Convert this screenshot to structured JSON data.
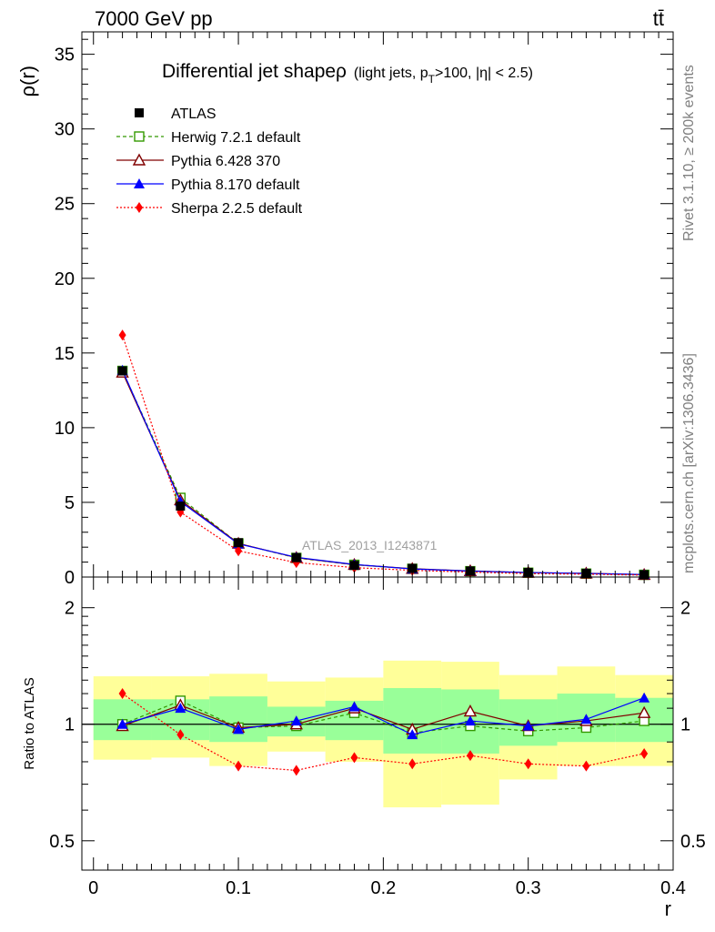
{
  "header": {
    "left_label": "7000 GeV pp",
    "right_label": "tt̄"
  },
  "side_labels": {
    "rivet": "Rivet 3.1.10, ≥ 200k events",
    "mcplots": "mcplots.cern.ch [arXiv:1306.3436]"
  },
  "watermark": "ATLAS_2013_I1243871",
  "chart_data": [
    {
      "type": "line",
      "panel": "main",
      "title": "Differential jet shapeρ",
      "title_cut_parts": [
        "(light jets, p",
        "T",
        ">100, |η| < 2.5)"
      ],
      "ylabel": "ρ(r)",
      "ylim": [
        0,
        36.5
      ],
      "xlim": [
        -0.008,
        0.4
      ],
      "yticks": [
        0,
        5,
        10,
        15,
        20,
        25,
        30,
        35
      ],
      "x": [
        0.02,
        0.06,
        0.1,
        0.14,
        0.18,
        0.22,
        0.26,
        0.3,
        0.34,
        0.38
      ],
      "series": [
        {
          "name": "ATLAS",
          "color": "#000000",
          "marker": "filled-square",
          "line": "none",
          "values": [
            13.8,
            4.75,
            2.3,
            1.3,
            0.78,
            0.58,
            0.4,
            0.3,
            0.24,
            0.15
          ]
        },
        {
          "name": "Herwig 7.2.1 default",
          "color": "#339900",
          "marker": "open-square",
          "line": "dashed",
          "values": [
            13.8,
            5.3,
            2.25,
            1.28,
            0.82,
            0.55,
            0.39,
            0.29,
            0.23,
            0.15
          ]
        },
        {
          "name": "Pythia 6.428 370",
          "color": "#800000",
          "marker": "open-triangle",
          "line": "solid",
          "values": [
            13.7,
            5.15,
            2.25,
            1.3,
            0.83,
            0.56,
            0.41,
            0.3,
            0.25,
            0.16
          ]
        },
        {
          "name": "Pythia 8.170 default",
          "color": "#0000ff",
          "marker": "filled-triangle",
          "line": "solid",
          "values": [
            13.85,
            5.05,
            2.22,
            1.32,
            0.84,
            0.54,
            0.4,
            0.3,
            0.24,
            0.17
          ]
        },
        {
          "name": "Sherpa 2.2.5 default",
          "color": "#ff0000",
          "marker": "filled-diamond",
          "line": "dotted",
          "values": [
            16.2,
            4.35,
            1.75,
            0.97,
            0.63,
            0.45,
            0.33,
            0.23,
            0.19,
            0.13
          ]
        }
      ]
    },
    {
      "type": "line",
      "panel": "ratio",
      "xlabel": "r",
      "ylabel": "Ratio to ATLAS",
      "yscale": "log",
      "ylim": [
        0.42,
        2.4
      ],
      "xlim": [
        -0.008,
        0.4
      ],
      "yticks": [
        0.5,
        1,
        2
      ],
      "xticks": [
        0,
        0.1,
        0.2,
        0.3,
        0.4
      ],
      "bins": [
        [
          0.0,
          0.04
        ],
        [
          0.04,
          0.08
        ],
        [
          0.08,
          0.12
        ],
        [
          0.12,
          0.16
        ],
        [
          0.16,
          0.2
        ],
        [
          0.2,
          0.24
        ],
        [
          0.24,
          0.28
        ],
        [
          0.28,
          0.32
        ],
        [
          0.32,
          0.36
        ],
        [
          0.36,
          0.4
        ]
      ],
      "band_outer": {
        "color": "#ffff99",
        "lo": [
          0.81,
          0.82,
          0.78,
          0.85,
          0.8,
          0.61,
          0.62,
          0.72,
          0.78,
          0.78
        ],
        "hi": [
          1.33,
          1.33,
          1.35,
          1.29,
          1.32,
          1.46,
          1.45,
          1.34,
          1.41,
          1.34
        ]
      },
      "band_inner": {
        "color": "#99ff99",
        "lo": [
          0.91,
          0.91,
          0.9,
          0.93,
          0.91,
          0.84,
          0.84,
          0.88,
          0.9,
          0.9
        ],
        "hi": [
          1.16,
          1.16,
          1.18,
          1.11,
          1.15,
          1.24,
          1.23,
          1.16,
          1.2,
          1.17
        ]
      },
      "x": [
        0.02,
        0.06,
        0.1,
        0.14,
        0.18,
        0.22,
        0.26,
        0.3,
        0.34,
        0.38
      ],
      "series": [
        {
          "name": "Herwig 7.2.1 default",
          "color": "#339900",
          "marker": "open-square",
          "line": "dashed",
          "values": [
            1.0,
            1.15,
            0.98,
            0.99,
            1.07,
            0.95,
            0.99,
            0.96,
            0.98,
            1.02
          ]
        },
        {
          "name": "Pythia 6.428 370",
          "color": "#800000",
          "marker": "open-triangle",
          "line": "solid",
          "values": [
            0.99,
            1.12,
            0.98,
            1.0,
            1.1,
            0.97,
            1.08,
            0.99,
            1.02,
            1.07
          ]
        },
        {
          "name": "Pythia 8.170 default",
          "color": "#0000ff",
          "marker": "filled-triangle",
          "line": "solid",
          "values": [
            1.0,
            1.1,
            0.97,
            1.02,
            1.11,
            0.94,
            1.02,
            0.99,
            1.03,
            1.17
          ]
        },
        {
          "name": "Sherpa 2.2.5 default",
          "color": "#ff0000",
          "marker": "filled-diamond",
          "line": "dotted",
          "values": [
            1.2,
            0.94,
            0.78,
            0.76,
            0.82,
            0.79,
            0.83,
            0.79,
            0.78,
            0.84
          ]
        }
      ]
    }
  ]
}
